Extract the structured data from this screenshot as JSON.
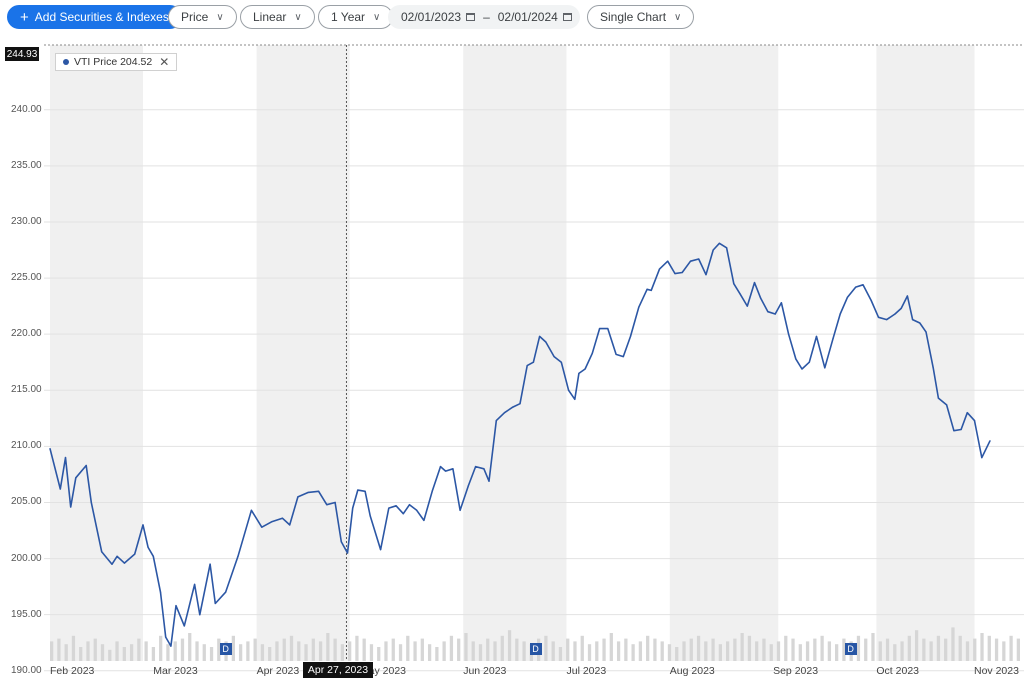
{
  "toolbar": {
    "add_label": "Add Securities & Indexes",
    "price_label": "Price",
    "scale_label": "Linear",
    "range_label": "1 Year",
    "start_date": "02/01/2023",
    "separator": "–",
    "end_date": "02/01/2024",
    "view_label": "Single Chart"
  },
  "legend": {
    "label": "VTI Price 204.52"
  },
  "crosshair": {
    "date_label": "Apr 27, 2023",
    "month_index": 2.87
  },
  "dividend_marker": {
    "label": "D",
    "month_positions": [
      1.7,
      4.7,
      7.75
    ]
  },
  "chart_data": {
    "type": "line",
    "title": "",
    "xlabel": "",
    "ylabel": "",
    "ylim": [
      190,
      244.93
    ],
    "y_ticks": [
      190,
      195,
      200,
      205,
      210,
      215,
      220,
      225,
      230,
      235,
      240
    ],
    "y_tick_labels": [
      "190.00",
      "195.00",
      "200.00",
      "205.00",
      "210.00",
      "215.00",
      "220.00",
      "225.00",
      "230.00",
      "235.00",
      "240.00"
    ],
    "y_max_label": "244.93",
    "x_tick_labels": [
      "Feb 2023",
      "Mar 2023",
      "Apr 2023",
      "May 2023",
      "Jun 2023",
      "Jul 2023",
      "Aug 2023",
      "Sep 2023",
      "Oct 2023",
      "Nov 2023"
    ],
    "x_range_months": [
      0,
      9.2
    ],
    "shaded_bands": [
      [
        0,
        0.9
      ],
      [
        2,
        2.9
      ],
      [
        4,
        5.0
      ],
      [
        6,
        7.05
      ],
      [
        8,
        8.95
      ]
    ],
    "series": [
      {
        "name": "VTI Price",
        "color": "#2c57a5",
        "points": [
          [
            0.0,
            209.8
          ],
          [
            0.1,
            206.2
          ],
          [
            0.15,
            209.0
          ],
          [
            0.2,
            204.6
          ],
          [
            0.25,
            207.2
          ],
          [
            0.35,
            208.3
          ],
          [
            0.4,
            205.0
          ],
          [
            0.5,
            200.6
          ],
          [
            0.6,
            199.5
          ],
          [
            0.65,
            200.2
          ],
          [
            0.72,
            199.6
          ],
          [
            0.82,
            200.4
          ],
          [
            0.9,
            203.0
          ],
          [
            0.95,
            201.0
          ],
          [
            1.0,
            200.2
          ],
          [
            1.07,
            197.0
          ],
          [
            1.12,
            193.0
          ],
          [
            1.17,
            192.2
          ],
          [
            1.22,
            195.8
          ],
          [
            1.3,
            194.0
          ],
          [
            1.4,
            197.7
          ],
          [
            1.45,
            195.0
          ],
          [
            1.55,
            199.5
          ],
          [
            1.6,
            196.0
          ],
          [
            1.7,
            197.0
          ],
          [
            1.82,
            200.2
          ],
          [
            1.95,
            204.3
          ],
          [
            2.05,
            202.8
          ],
          [
            2.15,
            203.3
          ],
          [
            2.25,
            203.6
          ],
          [
            2.32,
            203.0
          ],
          [
            2.4,
            205.5
          ],
          [
            2.5,
            205.9
          ],
          [
            2.6,
            206.0
          ],
          [
            2.68,
            204.8
          ],
          [
            2.76,
            205.0
          ],
          [
            2.82,
            201.5
          ],
          [
            2.88,
            200.5
          ],
          [
            2.93,
            204.5
          ],
          [
            2.98,
            206.1
          ],
          [
            3.05,
            206.0
          ],
          [
            3.1,
            203.8
          ],
          [
            3.2,
            200.8
          ],
          [
            3.28,
            204.5
          ],
          [
            3.35,
            204.7
          ],
          [
            3.42,
            204.0
          ],
          [
            3.48,
            204.8
          ],
          [
            3.55,
            204.3
          ],
          [
            3.62,
            203.4
          ],
          [
            3.7,
            206.0
          ],
          [
            3.78,
            208.2
          ],
          [
            3.83,
            207.8
          ],
          [
            3.9,
            208.0
          ],
          [
            3.97,
            204.3
          ],
          [
            4.05,
            206.5
          ],
          [
            4.12,
            208.2
          ],
          [
            4.2,
            208.0
          ],
          [
            4.25,
            206.9
          ],
          [
            4.32,
            212.3
          ],
          [
            4.4,
            213.0
          ],
          [
            4.48,
            213.5
          ],
          [
            4.55,
            213.8
          ],
          [
            4.62,
            217.2
          ],
          [
            4.68,
            217.5
          ],
          [
            4.74,
            219.8
          ],
          [
            4.8,
            219.3
          ],
          [
            4.88,
            218.0
          ],
          [
            4.95,
            217.5
          ],
          [
            5.02,
            215.0
          ],
          [
            5.08,
            214.2
          ],
          [
            5.12,
            216.5
          ],
          [
            5.18,
            216.9
          ],
          [
            5.25,
            218.3
          ],
          [
            5.32,
            220.5
          ],
          [
            5.4,
            220.5
          ],
          [
            5.48,
            218.2
          ],
          [
            5.55,
            218.0
          ],
          [
            5.62,
            219.8
          ],
          [
            5.7,
            222.4
          ],
          [
            5.78,
            224.0
          ],
          [
            5.82,
            223.9
          ],
          [
            5.9,
            225.8
          ],
          [
            5.98,
            226.5
          ],
          [
            6.05,
            225.4
          ],
          [
            6.12,
            225.5
          ],
          [
            6.2,
            226.5
          ],
          [
            6.28,
            226.7
          ],
          [
            6.35,
            225.3
          ],
          [
            6.42,
            227.5
          ],
          [
            6.48,
            228.1
          ],
          [
            6.55,
            227.7
          ],
          [
            6.62,
            224.5
          ],
          [
            6.68,
            223.6
          ],
          [
            6.75,
            222.5
          ],
          [
            6.82,
            224.6
          ],
          [
            6.88,
            223.2
          ],
          [
            6.95,
            222.0
          ],
          [
            7.02,
            221.8
          ],
          [
            7.08,
            222.8
          ],
          [
            7.15,
            220.0
          ],
          [
            7.22,
            217.8
          ],
          [
            7.28,
            216.9
          ],
          [
            7.35,
            217.5
          ],
          [
            7.42,
            219.8
          ],
          [
            7.5,
            217.0
          ],
          [
            7.58,
            219.6
          ],
          [
            7.65,
            221.8
          ],
          [
            7.72,
            223.3
          ],
          [
            7.8,
            224.2
          ],
          [
            7.87,
            224.4
          ],
          [
            7.95,
            223.0
          ],
          [
            8.02,
            221.5
          ],
          [
            8.1,
            221.3
          ],
          [
            8.18,
            221.8
          ],
          [
            8.24,
            222.3
          ],
          [
            8.3,
            223.4
          ],
          [
            8.35,
            221.3
          ],
          [
            8.42,
            221.0
          ],
          [
            8.48,
            220.2
          ],
          [
            8.55,
            217.0
          ],
          [
            8.6,
            214.3
          ],
          [
            8.68,
            213.7
          ],
          [
            8.75,
            211.4
          ],
          [
            8.82,
            211.5
          ],
          [
            8.88,
            213.0
          ],
          [
            8.95,
            212.3
          ],
          [
            9.02,
            209.0
          ],
          [
            9.1,
            210.5
          ]
        ]
      }
    ],
    "volume_bars": [
      7,
      8,
      6,
      9,
      5,
      7,
      8,
      6,
      4,
      7,
      5,
      6,
      8,
      7,
      5,
      9,
      6,
      7,
      8,
      10,
      7,
      6,
      5,
      8,
      7,
      9,
      6,
      7,
      8,
      6,
      5,
      7,
      8,
      9,
      7,
      6,
      8,
      7,
      10,
      8,
      6,
      7,
      9,
      8,
      6,
      5,
      7,
      8,
      6,
      9,
      7,
      8,
      6,
      5,
      7,
      9,
      8,
      10,
      7,
      6,
      8,
      7,
      9,
      11,
      8,
      7,
      6,
      8,
      9,
      7,
      5,
      8,
      7,
      9,
      6,
      7,
      8,
      10,
      7,
      8,
      6,
      7,
      9,
      8,
      7,
      6,
      5,
      7,
      8,
      9,
      7,
      8,
      6,
      7,
      8,
      10,
      9,
      7,
      8,
      6,
      7,
      9,
      8,
      6,
      7,
      8,
      9,
      7,
      6,
      8,
      7,
      9,
      8,
      10,
      7,
      8,
      6,
      7,
      9,
      11,
      8,
      7,
      9,
      8,
      12,
      9,
      7,
      8,
      10,
      9,
      8,
      7,
      9,
      8
    ],
    "volume_bars_visible": false
  }
}
